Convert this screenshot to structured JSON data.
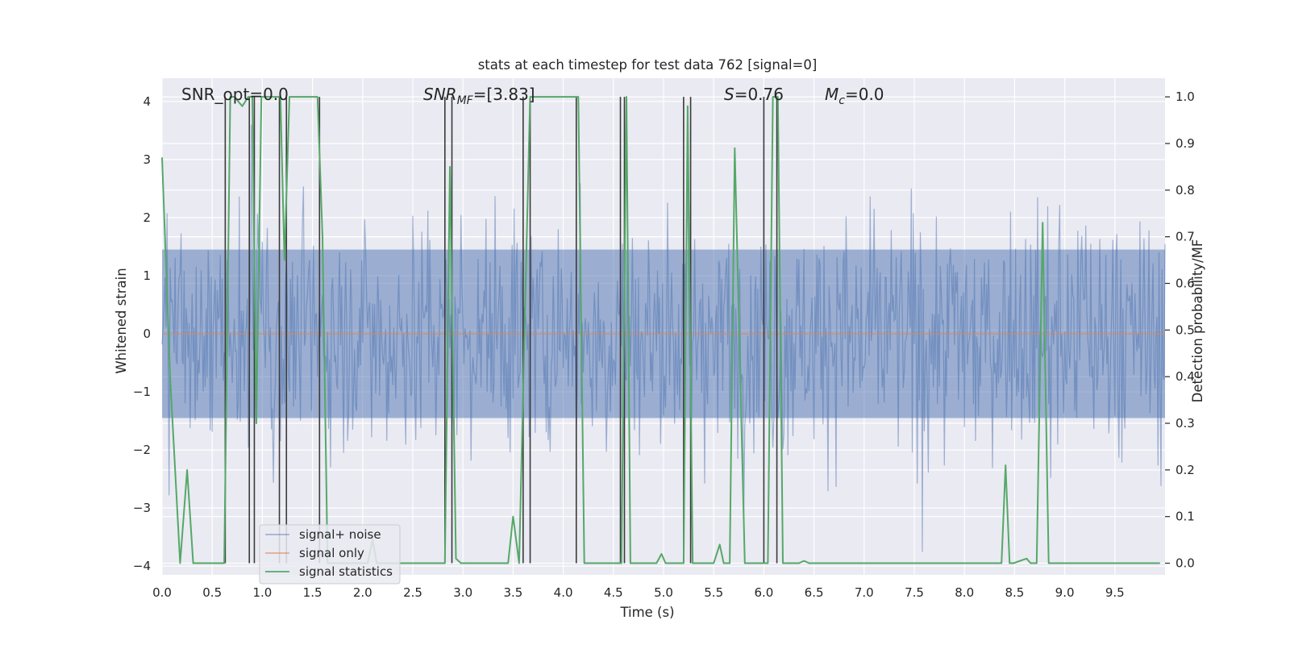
{
  "chart_data": {
    "type": "line",
    "title": "stats at each timestep for test data 762 [signal=0]",
    "xlabel": "Time (s)",
    "ylabel": "Whitened strain",
    "y2label": "Detection probability/MF",
    "xlim": [
      0,
      10
    ],
    "ylim": [
      -4.15,
      4.4
    ],
    "y2lim": [
      -0.025,
      1.04
    ],
    "grid": true,
    "xticks": [
      0.0,
      0.5,
      1.0,
      1.5,
      2.0,
      2.5,
      3.0,
      3.5,
      4.0,
      4.5,
      5.0,
      5.5,
      6.0,
      6.5,
      7.0,
      7.5,
      8.0,
      8.5,
      9.0,
      9.5
    ],
    "xtick_labels": [
      "0.0",
      "0.5",
      "1.0",
      "1.5",
      "2.0",
      "2.5",
      "3.0",
      "3.5",
      "4.0",
      "4.5",
      "5.0",
      "5.5",
      "6.0",
      "6.5",
      "7.0",
      "7.5",
      "8.0",
      "8.5",
      "9.0",
      "9.5"
    ],
    "yticks": [
      -4,
      -3,
      -2,
      -1,
      0,
      1,
      2,
      3,
      4
    ],
    "ytick_labels": [
      "−4",
      "−3",
      "−2",
      "−1",
      "0",
      "1",
      "2",
      "3",
      "4"
    ],
    "y2ticks": [
      0.0,
      0.1,
      0.2,
      0.3,
      0.4,
      0.5,
      0.6,
      0.7,
      0.8,
      0.9,
      1.0
    ],
    "y2tick_labels": [
      "0.0",
      "0.1",
      "0.2",
      "0.3",
      "0.4",
      "0.5",
      "0.6",
      "0.7",
      "0.8",
      "0.9",
      "1.0"
    ],
    "annotations": {
      "snr_opt": "SNR_opt=0.0",
      "snr_mf_sym": "SNR",
      "snr_mf_sub": "MF",
      "snr_mf_val": "=[3.83]",
      "s_sym": "S",
      "s_val": "=0.76",
      "mc_sym": "M",
      "mc_sub": "c",
      "mc_val": "=0.0"
    },
    "legend": {
      "position": "lower left",
      "entries": [
        "signal+ noise",
        "signal only",
        "signal statistics"
      ]
    },
    "colors": {
      "noise": "#4c72b0",
      "signal_only": "#dd8452",
      "stats": "#55a868",
      "vlines": "#3a3a3a",
      "plot_bg": "#eaeaf2",
      "grid": "#ffffff"
    },
    "noise_series": {
      "name": "signal+ noise",
      "sample_rate_hz": 100,
      "amplitude_envelope": [
        2.6,
        -2.6
      ],
      "note_values": "dense noise fluctuating roughly between -3.8 and 3.6"
    },
    "signal_only_series": {
      "name": "signal only",
      "x": [
        0,
        10
      ],
      "y": [
        0,
        0
      ]
    },
    "stats_series": {
      "name": "signal statistics",
      "x": [
        0.0,
        0.08,
        0.18,
        0.25,
        0.31,
        0.62,
        0.68,
        0.72,
        0.8,
        0.86,
        0.9,
        0.94,
        0.99,
        1.04,
        1.18,
        1.22,
        1.27,
        1.31,
        1.55,
        1.6,
        1.65,
        2.05,
        2.1,
        2.14,
        2.2,
        2.82,
        2.87,
        2.93,
        2.98,
        3.03,
        3.45,
        3.5,
        3.56,
        3.62,
        3.67,
        3.72,
        4.15,
        4.21,
        4.54,
        4.58,
        4.63,
        4.67,
        4.93,
        4.98,
        5.02,
        5.08,
        5.2,
        5.24,
        5.29,
        5.5,
        5.56,
        5.6,
        5.66,
        5.71,
        5.81,
        5.93,
        6.04,
        6.09,
        6.14,
        6.19,
        6.35,
        6.4,
        6.45,
        6.5,
        8.37,
        8.41,
        8.45,
        8.49,
        8.62,
        8.66,
        8.72,
        8.78,
        8.84,
        9.95
      ],
      "y": [
        0.87,
        0.4,
        0.0,
        0.2,
        0.0,
        0.0,
        1.0,
        1.0,
        0.98,
        1.0,
        1.0,
        0.3,
        1.0,
        1.0,
        1.0,
        0.65,
        1.0,
        1.0,
        1.0,
        0.7,
        0.0,
        0.0,
        0.05,
        0.0,
        0.0,
        0.0,
        0.85,
        0.01,
        0.0,
        0.0,
        0.0,
        0.1,
        0.0,
        0.55,
        1.0,
        1.0,
        1.0,
        0.0,
        0.0,
        0.0,
        1.0,
        0.0,
        0.0,
        0.02,
        0.0,
        0.0,
        0.0,
        0.98,
        0.0,
        0.0,
        0.04,
        0.0,
        0.0,
        0.89,
        0.0,
        0.0,
        0.0,
        1.0,
        1.0,
        0.0,
        0.0,
        0.005,
        0.0,
        0.0,
        0.0,
        0.21,
        0.0,
        0.0,
        0.01,
        0.0,
        0.0,
        0.73,
        0.0,
        0.0
      ],
      "vlines_x": [
        0.63,
        0.87,
        0.92,
        1.17,
        1.24,
        1.57,
        2.82,
        2.89,
        3.6,
        3.67,
        4.13,
        4.57,
        4.61,
        5.2,
        5.27,
        6.0,
        6.13
      ]
    }
  }
}
